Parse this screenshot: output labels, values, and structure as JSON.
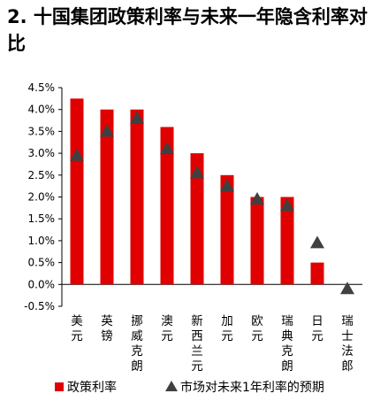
{
  "title": "2. 十国集团政策利率与未来一年隐含利率对比",
  "colors": {
    "bar": "#e00000",
    "marker": "#404040",
    "axis": "#000000"
  },
  "chart_data": {
    "type": "bar",
    "categories": [
      "美元",
      "英镑",
      "挪威克朗",
      "澳元",
      "新西兰元",
      "加元",
      "欧元",
      "瑞典克朗",
      "日元",
      "瑞士法郎"
    ],
    "series": [
      {
        "name": "政策利率",
        "type": "bar",
        "values": [
          4.25,
          4.0,
          4.0,
          3.6,
          3.0,
          2.5,
          2.0,
          2.0,
          0.5,
          0.0
        ]
      },
      {
        "name": "市场对未来1年利率的预期",
        "type": "scatter",
        "marker": "triangle",
        "values": [
          2.95,
          3.5,
          3.8,
          3.1,
          2.55,
          2.25,
          1.95,
          1.8,
          0.95,
          -0.1
        ]
      }
    ],
    "yticks": [
      "4.5%",
      "4.0%",
      "3.5%",
      "3.0%",
      "2.5%",
      "2.0%",
      "1.5%",
      "1.0%",
      "0.5%",
      "0.0%",
      "-0.5%"
    ],
    "ylim": [
      -0.5,
      4.5
    ],
    "legend": [
      "政策利率",
      "市场对未来1年利率的预期"
    ],
    "legend_position": "bottom"
  }
}
